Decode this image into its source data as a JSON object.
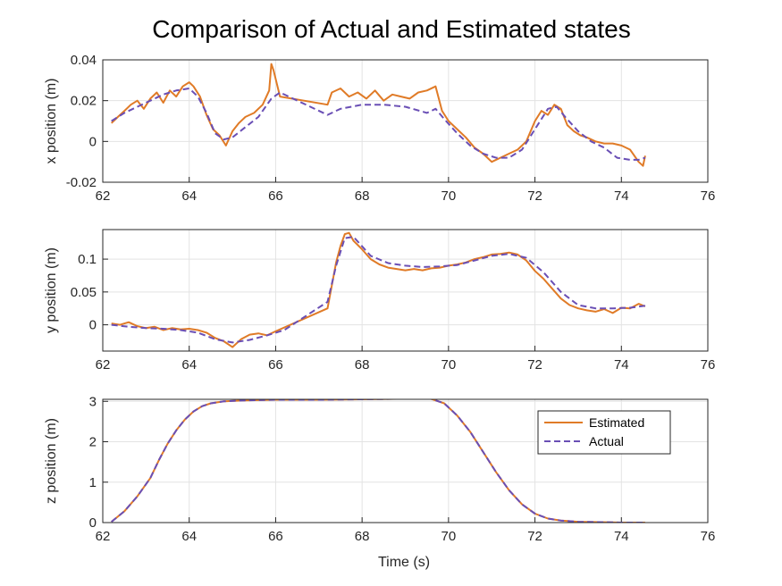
{
  "chart_data": {
    "type": "line",
    "title": "Comparison of Actual and Estimated states",
    "colors": {
      "estimated": "#e07b27",
      "actual": "#6a4fb5"
    },
    "legend": {
      "entries": [
        "Estimated",
        "Actual"
      ],
      "placement": "top-right",
      "in_subplot": 2
    },
    "xlabel": "Time (s)",
    "grid": true,
    "subplots": [
      {
        "ylabel": "x position (m)",
        "xlim": [
          62,
          76
        ],
        "ylim": [
          -0.02,
          0.04
        ],
        "xticks": [
          "62",
          "64",
          "66",
          "68",
          "70",
          "72",
          "74",
          "76"
        ],
        "yticks": [
          "-0.02",
          "0",
          "0.02",
          "0.04"
        ],
        "ytick_values": [
          -0.02,
          0,
          0.02,
          0.04
        ],
        "series": [
          {
            "name": "Estimated",
            "style": "solid",
            "x": [
              62.2,
              62.35,
              62.5,
              62.65,
              62.8,
              62.95,
              63.1,
              63.25,
              63.4,
              63.55,
              63.7,
              63.85,
              64.0,
              64.1,
              64.25,
              64.4,
              64.55,
              64.7,
              64.85,
              65.0,
              65.15,
              65.3,
              65.5,
              65.7,
              65.85,
              65.9,
              65.95,
              66.1,
              67.2,
              67.3,
              67.5,
              67.7,
              67.9,
              68.1,
              68.3,
              68.5,
              68.7,
              68.9,
              69.1,
              69.3,
              69.5,
              69.7,
              69.85,
              70.0,
              70.2,
              70.4,
              70.6,
              70.8,
              71.0,
              71.2,
              71.4,
              71.6,
              71.8,
              72.0,
              72.15,
              72.3,
              72.45,
              72.6,
              72.75,
              72.9,
              73.05,
              73.2,
              73.4,
              73.6,
              73.8,
              74.0,
              74.2,
              74.4,
              74.5,
              74.55
            ],
            "y": [
              0.009,
              0.012,
              0.015,
              0.018,
              0.02,
              0.016,
              0.021,
              0.024,
              0.019,
              0.025,
              0.022,
              0.027,
              0.029,
              0.027,
              0.022,
              0.013,
              0.006,
              0.003,
              -0.002,
              0.005,
              0.009,
              0.012,
              0.014,
              0.018,
              0.025,
              0.038,
              0.035,
              0.022,
              0.018,
              0.024,
              0.026,
              0.022,
              0.024,
              0.021,
              0.025,
              0.02,
              0.023,
              0.022,
              0.021,
              0.024,
              0.025,
              0.027,
              0.015,
              0.01,
              0.006,
              0.002,
              -0.003,
              -0.006,
              -0.01,
              -0.008,
              -0.006,
              -0.004,
              0.0,
              0.01,
              0.015,
              0.013,
              0.018,
              0.016,
              0.008,
              0.005,
              0.003,
              0.002,
              0.0,
              -0.001,
              -0.001,
              -0.002,
              -0.004,
              -0.01,
              -0.012,
              -0.007
            ]
          },
          {
            "name": "Actual",
            "style": "dashed",
            "x": [
              62.2,
              62.5,
              62.8,
              63.1,
              63.4,
              63.7,
              64.0,
              64.2,
              64.4,
              64.6,
              64.8,
              65.0,
              65.3,
              65.6,
              65.9,
              66.1,
              67.2,
              67.5,
              68.0,
              68.5,
              69.0,
              69.5,
              69.7,
              69.9,
              70.2,
              70.5,
              70.8,
              71.1,
              71.4,
              71.7,
              72.0,
              72.3,
              72.5,
              72.7,
              73.0,
              73.3,
              73.6,
              73.9,
              74.2,
              74.4,
              74.55
            ],
            "y": [
              0.01,
              0.014,
              0.017,
              0.02,
              0.023,
              0.025,
              0.026,
              0.022,
              0.014,
              0.004,
              0.001,
              0.002,
              0.007,
              0.012,
              0.021,
              0.024,
              0.013,
              0.016,
              0.018,
              0.018,
              0.017,
              0.014,
              0.016,
              0.011,
              0.004,
              -0.002,
              -0.006,
              -0.008,
              -0.008,
              -0.004,
              0.006,
              0.016,
              0.017,
              0.012,
              0.005,
              0.0,
              -0.003,
              -0.008,
              -0.009,
              -0.009,
              -0.008
            ]
          }
        ]
      },
      {
        "ylabel": "y position (m)",
        "xlim": [
          62,
          76
        ],
        "ylim": [
          -0.04,
          0.145
        ],
        "xticks": [
          "62",
          "64",
          "66",
          "68",
          "70",
          "72",
          "74",
          "76"
        ],
        "yticks": [
          "0",
          "0.05",
          "0.1"
        ],
        "ytick_values": [
          0,
          0.05,
          0.1
        ],
        "series": [
          {
            "name": "Estimated",
            "style": "solid",
            "x": [
              62.2,
              62.4,
              62.6,
              62.8,
              63.0,
              63.2,
              63.4,
              63.6,
              63.8,
              64.0,
              64.2,
              64.4,
              64.6,
              64.8,
              65.0,
              65.2,
              65.4,
              65.6,
              65.8,
              66.0,
              67.2,
              67.3,
              67.4,
              67.5,
              67.6,
              67.7,
              67.8,
              68.0,
              68.2,
              68.4,
              68.6,
              68.8,
              69.0,
              69.2,
              69.4,
              69.6,
              69.8,
              70.0,
              70.2,
              70.4,
              70.6,
              70.8,
              71.0,
              71.2,
              71.4,
              71.6,
              71.8,
              72.0,
              72.2,
              72.4,
              72.6,
              72.8,
              73.0,
              73.2,
              73.4,
              73.6,
              73.8,
              74.0,
              74.2,
              74.4,
              74.55
            ],
            "y": [
              0.002,
              0.0,
              0.004,
              -0.002,
              -0.005,
              -0.003,
              -0.008,
              -0.005,
              -0.007,
              -0.006,
              -0.008,
              -0.012,
              -0.02,
              -0.025,
              -0.034,
              -0.022,
              -0.015,
              -0.013,
              -0.016,
              -0.01,
              0.025,
              0.06,
              0.095,
              0.12,
              0.138,
              0.14,
              0.128,
              0.115,
              0.1,
              0.092,
              0.087,
              0.085,
              0.083,
              0.085,
              0.083,
              0.086,
              0.087,
              0.09,
              0.092,
              0.095,
              0.1,
              0.103,
              0.107,
              0.108,
              0.11,
              0.107,
              0.098,
              0.082,
              0.07,
              0.055,
              0.04,
              0.03,
              0.025,
              0.022,
              0.02,
              0.024,
              0.018,
              0.026,
              0.025,
              0.032,
              0.028
            ]
          },
          {
            "name": "Actual",
            "style": "dashed",
            "x": [
              62.2,
              62.6,
              63.0,
              63.4,
              63.8,
              64.2,
              64.6,
              65.0,
              65.4,
              65.8,
              66.2,
              67.2,
              67.4,
              67.6,
              67.8,
              68.2,
              68.6,
              69.0,
              69.4,
              69.8,
              70.2,
              70.6,
              71.0,
              71.4,
              71.8,
              72.2,
              72.6,
              73.0,
              73.4,
              73.8,
              74.2,
              74.55
            ],
            "y": [
              0.0,
              -0.003,
              -0.005,
              -0.006,
              -0.008,
              -0.012,
              -0.022,
              -0.027,
              -0.023,
              -0.016,
              -0.008,
              0.035,
              0.09,
              0.132,
              0.134,
              0.105,
              0.094,
              0.09,
              0.088,
              0.089,
              0.091,
              0.098,
              0.105,
              0.108,
              0.102,
              0.08,
              0.05,
              0.03,
              0.025,
              0.025,
              0.026,
              0.029
            ]
          }
        ]
      },
      {
        "ylabel": "z position (m)",
        "xlim": [
          62,
          76
        ],
        "ylim": [
          0,
          3.05
        ],
        "xticks": [
          "62",
          "64",
          "66",
          "68",
          "70",
          "72",
          "74",
          "76"
        ],
        "yticks": [
          "0",
          "1",
          "2",
          "3"
        ],
        "ytick_values": [
          0,
          1,
          2,
          3
        ],
        "series": [
          {
            "name": "Estimated",
            "style": "solid",
            "x": [
              62.2,
              62.5,
              62.8,
              63.1,
              63.3,
              63.5,
              63.7,
              63.9,
              64.1,
              64.3,
              64.5,
              64.8,
              65.2,
              65.6,
              66.0,
              67.0,
              68.0,
              68.8,
              69.6,
              69.9,
              70.2,
              70.5,
              70.8,
              71.1,
              71.4,
              71.7,
              72.0,
              72.3,
              72.6,
              73.0,
              73.5,
              74.0,
              74.55
            ],
            "y": [
              0.02,
              0.28,
              0.65,
              1.1,
              1.55,
              1.95,
              2.28,
              2.55,
              2.75,
              2.88,
              2.95,
              3.0,
              3.02,
              3.03,
              3.04,
              3.04,
              3.05,
              3.06,
              3.06,
              2.95,
              2.65,
              2.25,
              1.75,
              1.25,
              0.8,
              0.45,
              0.22,
              0.1,
              0.05,
              0.02,
              0.01,
              0.0,
              0.0
            ]
          },
          {
            "name": "Actual",
            "style": "dashed",
            "x": [
              62.2,
              62.5,
              62.8,
              63.1,
              63.3,
              63.5,
              63.7,
              63.9,
              64.1,
              64.3,
              64.5,
              64.8,
              65.2,
              65.6,
              66.0,
              67.0,
              68.0,
              68.8,
              69.6,
              69.9,
              70.2,
              70.5,
              70.8,
              71.1,
              71.4,
              71.7,
              72.0,
              72.3,
              72.6,
              73.0,
              73.5,
              74.0,
              74.55
            ],
            "y": [
              0.02,
              0.28,
              0.65,
              1.1,
              1.55,
              1.95,
              2.28,
              2.55,
              2.75,
              2.88,
              2.95,
              3.0,
              3.02,
              3.03,
              3.04,
              3.04,
              3.05,
              3.06,
              3.06,
              2.95,
              2.65,
              2.25,
              1.75,
              1.25,
              0.8,
              0.45,
              0.22,
              0.1,
              0.05,
              0.02,
              0.01,
              0.0,
              0.0
            ]
          }
        ]
      }
    ]
  }
}
